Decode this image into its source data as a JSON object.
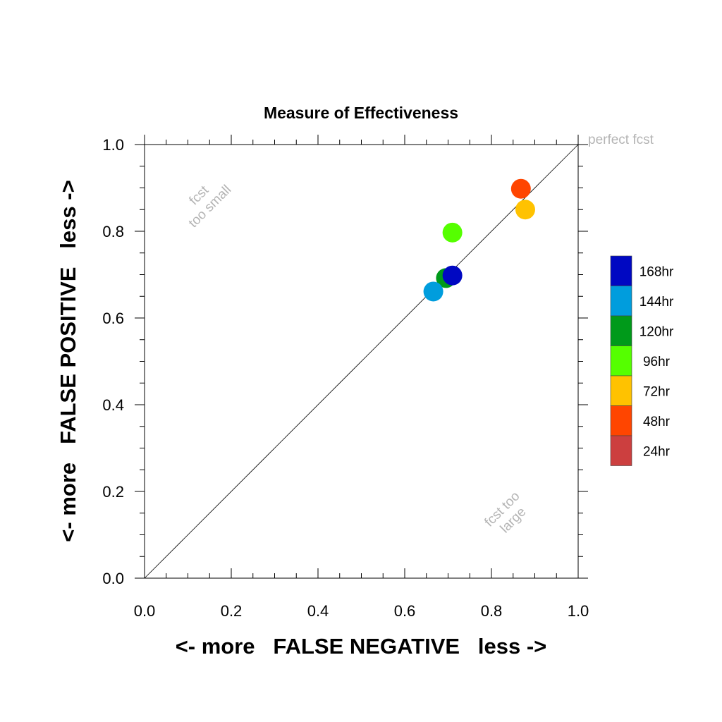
{
  "chart_data": {
    "type": "scatter",
    "title": "Measure of Effectiveness",
    "xlabel": "<- more   FALSE NEGATIVE   less ->",
    "ylabel": "<- more   FALSE POSITIVE   less ->",
    "xlim": [
      0,
      1
    ],
    "ylim": [
      0,
      1
    ],
    "x_ticks": [
      "0.0",
      "0.2",
      "0.4",
      "0.6",
      "0.8",
      "1.0"
    ],
    "y_ticks": [
      "0.0",
      "0.2",
      "0.4",
      "0.6",
      "0.8",
      "1.0"
    ],
    "grid": false,
    "reference_line": "diagonal y = x",
    "annotations": {
      "perfect": "perfect fcst",
      "small_line1": "fcst",
      "small_line2": "too small",
      "large_line1": "fcst too",
      "large_line2": "large"
    },
    "series": [
      {
        "name": "48hr",
        "color": "#ff4500",
        "x": 0.868,
        "y": 0.898
      },
      {
        "name": "72hr",
        "color": "#ffc200",
        "x": 0.878,
        "y": 0.85
      },
      {
        "name": "96hr",
        "color": "#55ff00",
        "x": 0.71,
        "y": 0.797
      },
      {
        "name": "120hr",
        "color": "#009a1a",
        "x": 0.695,
        "y": 0.692
      },
      {
        "name": "168hr",
        "color": "#0008c2",
        "x": 0.71,
        "y": 0.698
      },
      {
        "name": "144hr",
        "color": "#009ddd",
        "x": 0.666,
        "y": 0.661
      }
    ],
    "legend": {
      "placement": "right",
      "entries": [
        {
          "label": "168hr",
          "color": "#0008c2"
        },
        {
          "label": "144hr",
          "color": "#009ddd"
        },
        {
          "label": "120hr",
          "color": "#009a1a"
        },
        {
          "label": "96hr",
          "color": "#55ff00"
        },
        {
          "label": "72hr",
          "color": "#ffc200"
        },
        {
          "label": "48hr",
          "color": "#ff4500"
        },
        {
          "label": "24hr",
          "color": "#cc3f3f"
        }
      ]
    }
  }
}
